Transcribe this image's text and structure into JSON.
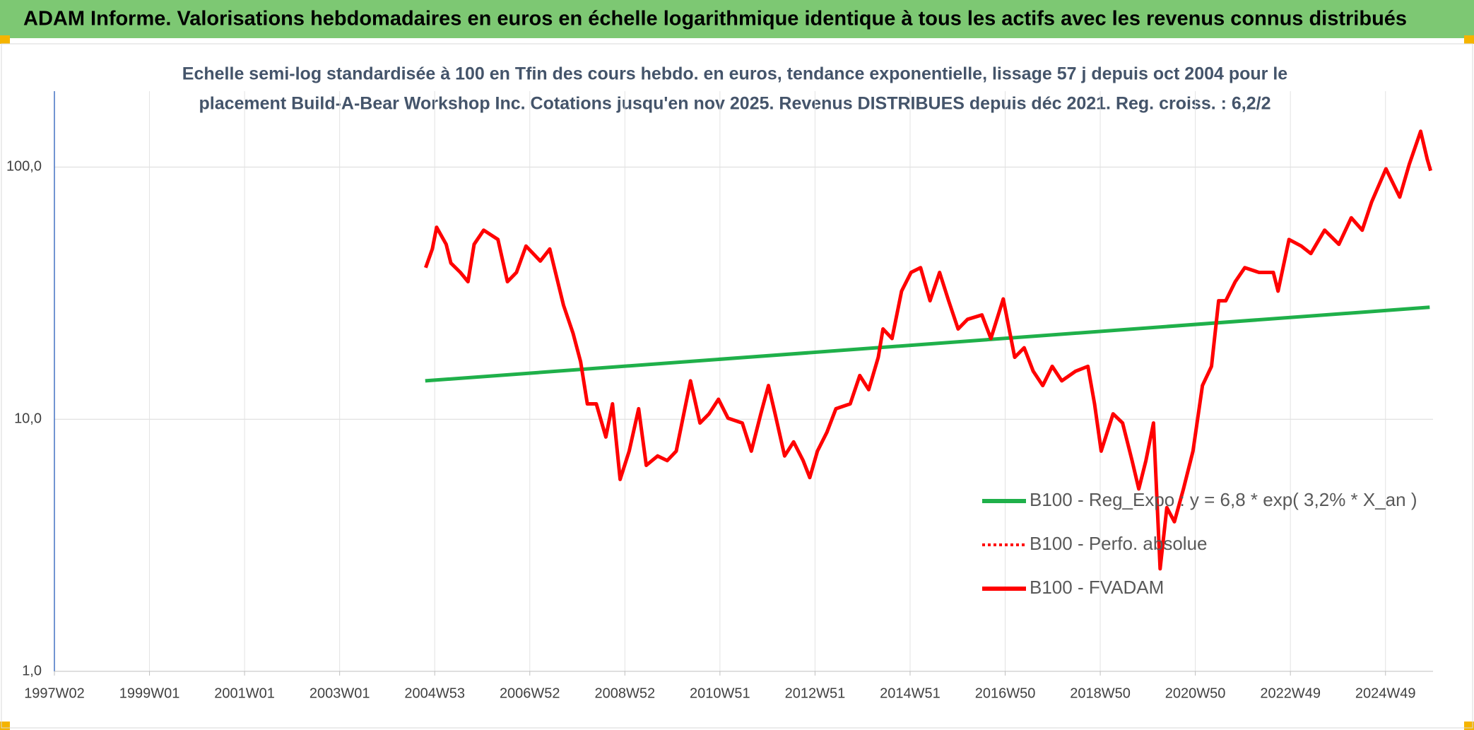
{
  "header": "ADAM Informe. Valorisations hebdomadaires en euros en échelle logarithmique identique à tous les actifs avec les revenus connus distribués",
  "chart_data": {
    "type": "line",
    "title": [
      "Echelle semi-log standardisée à 100 en Tfin des cours hebdo. en euros, tendance exponentielle, lissage 57 j depuis oct 2004 pour le",
      "placement Build-A-Bear Workshop Inc. Cotations jusqu'en nov 2025. Revenus DISTRIBUES depuis déc 2021. Reg. croiss. : 6,2/2"
    ],
    "log_y": true,
    "grid": true,
    "xlim": [
      1997.0,
      2026.0
    ],
    "ylim": [
      1,
      200
    ],
    "yticks": [
      {
        "value": 1,
        "label": "1,0"
      },
      {
        "value": 10,
        "label": "10,0"
      },
      {
        "value": 100,
        "label": "100,0"
      }
    ],
    "xticks": [
      {
        "value": 1997.0,
        "label": "1997W02"
      },
      {
        "value": 1999.0,
        "label": "1999W01"
      },
      {
        "value": 2001.0,
        "label": "2001W01"
      },
      {
        "value": 2003.0,
        "label": "2003W01"
      },
      {
        "value": 2005.0,
        "label": "2004W53"
      },
      {
        "value": 2007.0,
        "label": "2006W52"
      },
      {
        "value": 2009.0,
        "label": "2008W52"
      },
      {
        "value": 2011.0,
        "label": "2010W51"
      },
      {
        "value": 2013.0,
        "label": "2012W51"
      },
      {
        "value": 2015.0,
        "label": "2014W51"
      },
      {
        "value": 2017.0,
        "label": "2016W50"
      },
      {
        "value": 2019.0,
        "label": "2018W50"
      },
      {
        "value": 2021.0,
        "label": "2020W50"
      },
      {
        "value": 2023.0,
        "label": "2022W49"
      },
      {
        "value": 2025.0,
        "label": "2024W49"
      }
    ],
    "series": [
      {
        "name": "B100 - Reg_Expo : y = 6,8 * exp( 3,2% *  X_an )",
        "color": "#1fb04a",
        "dash": false,
        "x": [
          2004.8,
          2025.93
        ],
        "values": [
          14.2,
          27.8
        ]
      },
      {
        "name": "B100 - Perfo. absolue",
        "color": "#ff0000",
        "dash": true,
        "x": [],
        "values": []
      },
      {
        "name": "B100 - FVADAM",
        "color": "#ff0000",
        "dash": false,
        "x": [
          2004.81,
          2004.95,
          2005.04,
          2005.24,
          2005.34,
          2005.54,
          2005.7,
          2005.83,
          2006.03,
          2006.33,
          2006.53,
          2006.72,
          2006.92,
          2007.22,
          2007.42,
          2007.71,
          2007.91,
          2008.07,
          2008.21,
          2008.4,
          2008.6,
          2008.74,
          2008.9,
          2009.09,
          2009.29,
          2009.45,
          2009.69,
          2009.89,
          2010.08,
          2010.24,
          2010.38,
          2010.58,
          2010.77,
          2010.97,
          2011.17,
          2011.47,
          2011.66,
          2011.86,
          2012.02,
          2012.16,
          2012.36,
          2012.55,
          2012.75,
          2012.89,
          2013.05,
          2013.25,
          2013.44,
          2013.74,
          2013.94,
          2014.13,
          2014.33,
          2014.43,
          2014.62,
          2014.82,
          2015.02,
          2015.22,
          2015.42,
          2015.62,
          2015.81,
          2016.01,
          2016.21,
          2016.51,
          2016.7,
          2016.96,
          2017.2,
          2017.4,
          2017.59,
          2017.79,
          2017.99,
          2018.19,
          2018.48,
          2018.74,
          2018.88,
          2019.02,
          2019.27,
          2019.47,
          2019.67,
          2019.81,
          2019.96,
          2020.12,
          2020.26,
          2020.4,
          2020.56,
          2020.75,
          2020.95,
          2021.15,
          2021.34,
          2021.49,
          2021.64,
          2021.84,
          2022.04,
          2022.34,
          2022.64,
          2022.74,
          2022.97,
          2023.23,
          2023.43,
          2023.72,
          2024.02,
          2024.28,
          2024.51,
          2024.71,
          2025.01,
          2025.3,
          2025.5,
          2025.74,
          2025.88,
          2025.95
        ],
        "values": [
          39.9,
          47.3,
          57.7,
          49.4,
          41.6,
          38.2,
          35.1,
          49.4,
          56.2,
          51.6,
          35.1,
          38.2,
          48.6,
          42.4,
          47.3,
          28.3,
          21.9,
          16.9,
          11.5,
          11.5,
          8.5,
          11.5,
          5.77,
          7.47,
          11.0,
          6.56,
          7.15,
          6.85,
          7.47,
          10.5,
          14.2,
          9.66,
          10.5,
          12.0,
          10.1,
          9.66,
          7.47,
          10.5,
          13.6,
          10.5,
          7.15,
          8.13,
          6.85,
          5.87,
          7.47,
          8.87,
          11.0,
          11.5,
          14.9,
          13.1,
          17.6,
          22.8,
          20.9,
          32.2,
          38.2,
          39.9,
          29.5,
          38.2,
          29.5,
          22.8,
          24.9,
          25.9,
          20.9,
          30.0,
          17.6,
          19.2,
          15.5,
          13.6,
          16.2,
          14.2,
          15.5,
          16.2,
          11.5,
          7.47,
          10.5,
          9.66,
          6.85,
          5.29,
          6.85,
          9.66,
          2.55,
          4.46,
          3.92,
          5.29,
          7.47,
          13.6,
          16.2,
          29.5,
          29.5,
          35.1,
          39.9,
          38.2,
          38.2,
          32.2,
          51.6,
          48.6,
          45.4,
          56.2,
          49.4,
          62.9,
          56.2,
          72.8,
          98.4,
          76.0,
          102.6,
          138.6,
          107.2,
          96.7
        ]
      }
    ]
  }
}
